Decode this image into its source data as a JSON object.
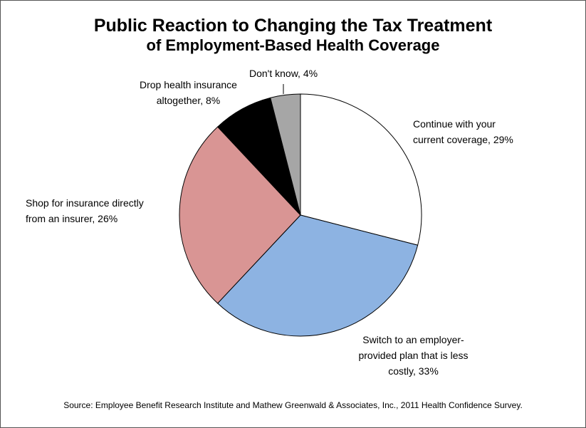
{
  "chart_data": {
    "type": "pie",
    "title": "Public Reaction to Changing the Tax Treatment",
    "subtitle": "of Employment-Based Health Coverage",
    "slices": [
      {
        "label": "Continue with your current coverage",
        "value": 29,
        "display": "Continue with your current coverage, 29%",
        "color": "#ffffff"
      },
      {
        "label": "Switch to an employer-provided plan that is less costly",
        "value": 33,
        "display": "Switch to an employer-provided plan that is less costly, 33%",
        "color": "#8db3e2"
      },
      {
        "label": "Shop for insurance directly from an insurer",
        "value": 26,
        "display": "Shop for insurance directly from an insurer, 26%",
        "color": "#d99594"
      },
      {
        "label": "Drop health insurance altogether",
        "value": 8,
        "display": "Drop health insurance altogether, 8%",
        "color": "#000000"
      },
      {
        "label": "Don't know",
        "value": 4,
        "display": "Don't know, 4%",
        "color": "#a6a6a6"
      }
    ],
    "label_lines": {
      "continue": [
        "Continue with your",
        "current coverage, 29%"
      ],
      "switch": [
        "Switch to an employer-",
        "provided plan that is less",
        "costly, 33%"
      ],
      "shop": [
        "Shop for insurance directly",
        "from an insurer, 26%"
      ],
      "drop": [
        "Drop health insurance",
        "altogether, 8%"
      ],
      "dontknow": [
        "Don't know, 4%"
      ]
    },
    "source": "Source: Employee Benefit Research Institute and Mathew Greenwald & Associates, Inc., 2011 Health Confidence Survey."
  }
}
